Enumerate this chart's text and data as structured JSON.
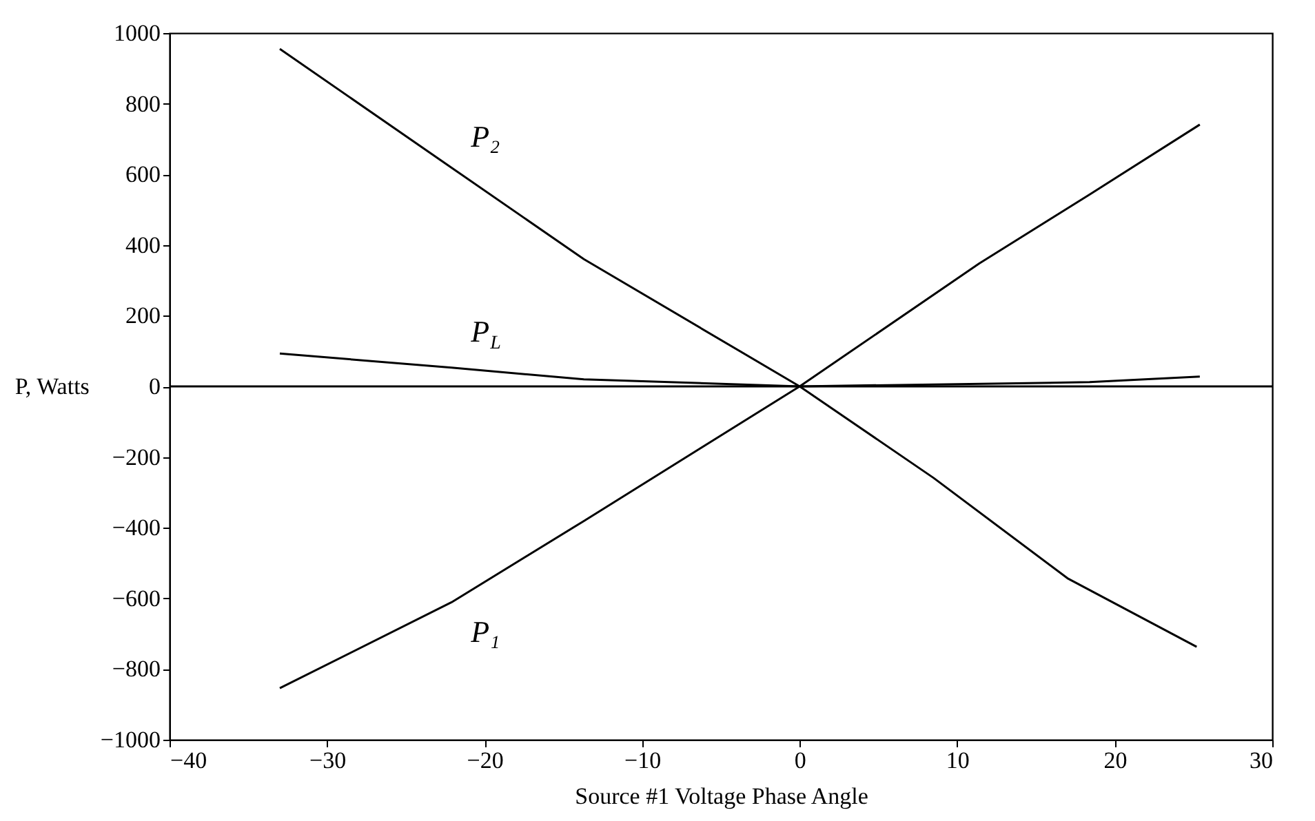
{
  "chart_data": {
    "type": "line",
    "xlabel": "Source #1 Voltage Phase Angle",
    "ylabel": "P, Watts",
    "xlim": [
      -40,
      30
    ],
    "xticks": [
      -40,
      -30,
      -20,
      -10,
      0,
      10,
      20,
      30
    ],
    "ylim": [
      -1000,
      1000
    ],
    "yticks": [
      -1000,
      -800,
      -600,
      -400,
      -200,
      0,
      200,
      400,
      600,
      800,
      1000
    ],
    "grid": false,
    "legend": false,
    "ref_lines": [
      {
        "axis": "y",
        "value": 0,
        "color": "#000000"
      }
    ],
    "series": [
      {
        "name": "P₁",
        "color": "#000000",
        "x": [
          -33,
          -22.1,
          -13.7,
          0,
          11.4,
          18.4,
          25.4
        ],
        "values": [
          -854,
          -611,
          -381,
          0,
          348,
          543,
          741
        ]
      },
      {
        "name": "P$_{L}$",
        "color": "#000000",
        "x": [
          -33,
          -22.1,
          -13.7,
          0,
          18.4,
          25.4
        ],
        "values": [
          93,
          53,
          20,
          0,
          12,
          28
        ]
      },
      {
        "name": "P₂",
        "color": "#000000",
        "x": [
          -33,
          -22.1,
          -13.7,
          0,
          8.5,
          17,
          25.2
        ],
        "values": [
          955,
          619,
          360,
          0,
          -259,
          -543,
          -737
        ]
      }
    ]
  }
}
